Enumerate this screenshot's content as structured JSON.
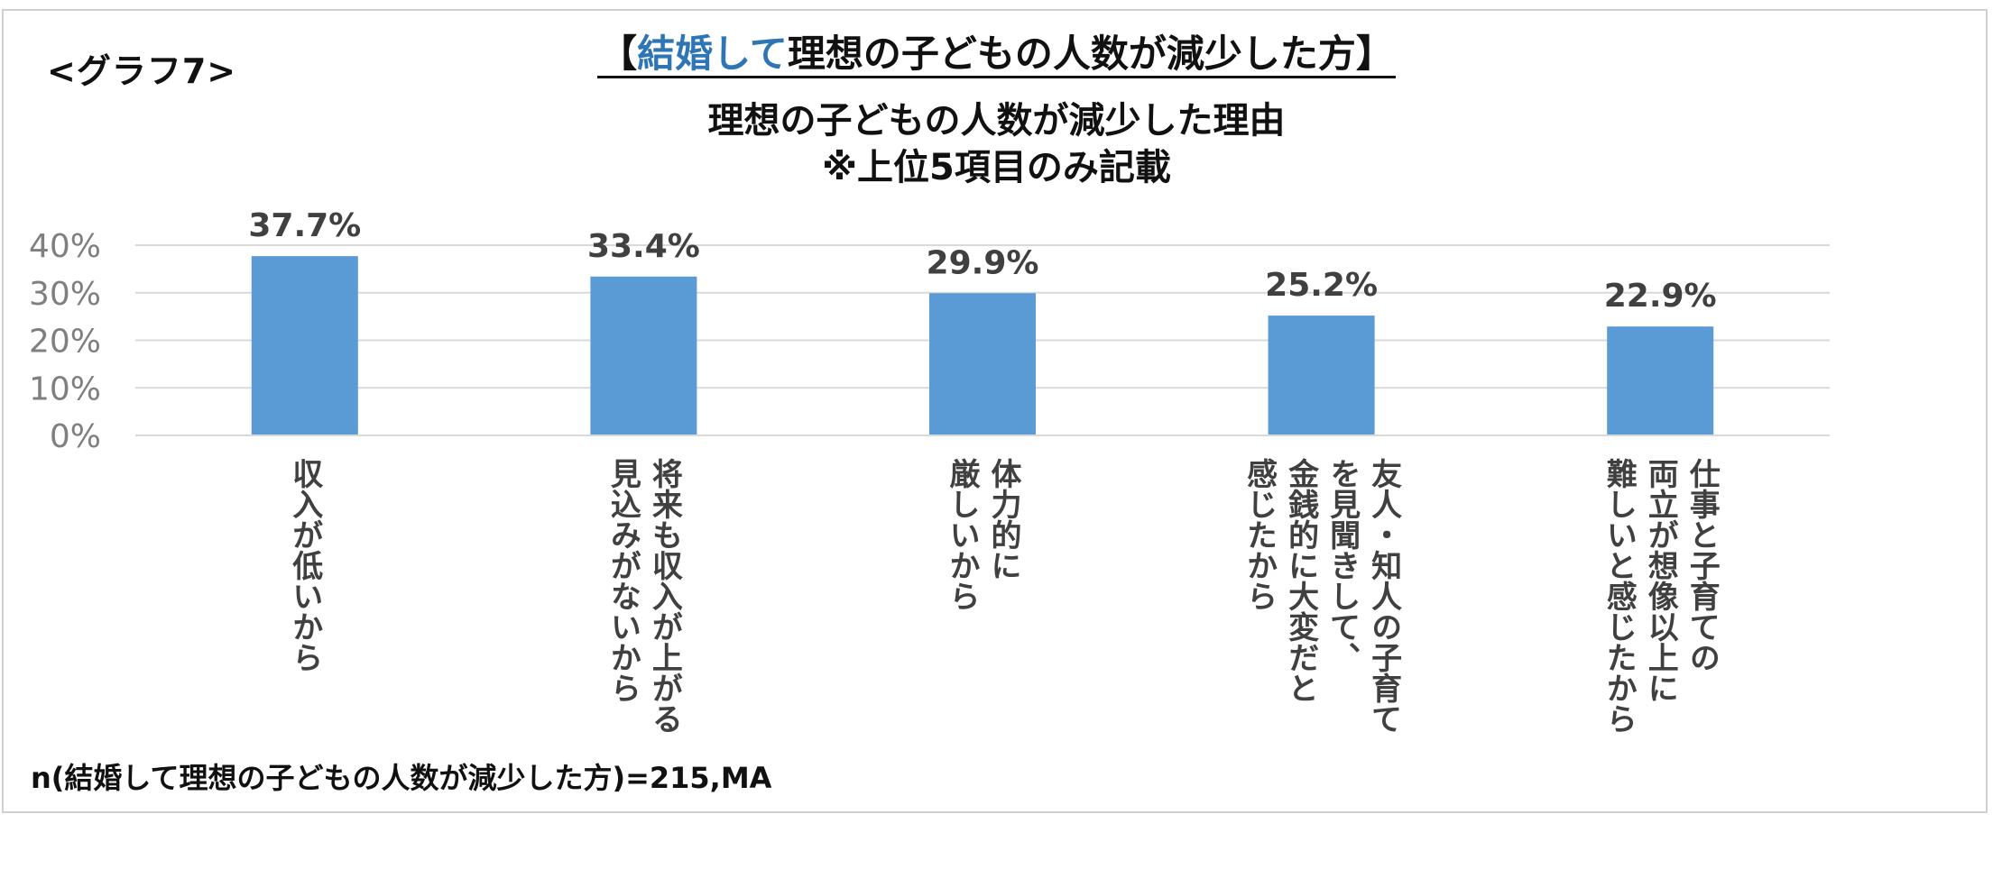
{
  "graph_label": "<グラフ7>",
  "title": {
    "open": "【",
    "accent": "結婚して",
    "rest": "理想の子どもの人数が減少した方",
    "close": "】"
  },
  "subtitle": {
    "line1": "理想の子どもの人数が減少した理由",
    "line2": "※上位5項目のみ記載"
  },
  "footnote": "n(結婚して理想の子どもの人数が減少した方)=215,MA",
  "colors": {
    "bar": "#5b9bd5",
    "grid": "#d9d9d9",
    "tick": "#7f7f7f",
    "label": "#404040",
    "accent": "#2e75b6"
  },
  "chart_data": {
    "type": "bar",
    "title": "理想の子どもの人数が減少した理由",
    "xlabel": "",
    "ylabel": "",
    "ylim": [
      0,
      40
    ],
    "yticks": [
      "0%",
      "10%",
      "20%",
      "30%",
      "40%"
    ],
    "categories": [
      [
        "収入が低いから"
      ],
      [
        "将来も収入が上がる",
        "見込みがないから"
      ],
      [
        "体力的に",
        "厳しいから"
      ],
      [
        "友人・知人の子育て",
        "を見聞きして、",
        "金銭的に大変だと",
        "感じたから"
      ],
      [
        "仕事と子育ての",
        "両立が想像以上に",
        "難しいと感じたから"
      ]
    ],
    "values": [
      37.7,
      33.4,
      29.9,
      25.2,
      22.9
    ],
    "value_labels": [
      "37.7%",
      "33.4%",
      "29.9%",
      "25.2%",
      "22.9%"
    ]
  }
}
